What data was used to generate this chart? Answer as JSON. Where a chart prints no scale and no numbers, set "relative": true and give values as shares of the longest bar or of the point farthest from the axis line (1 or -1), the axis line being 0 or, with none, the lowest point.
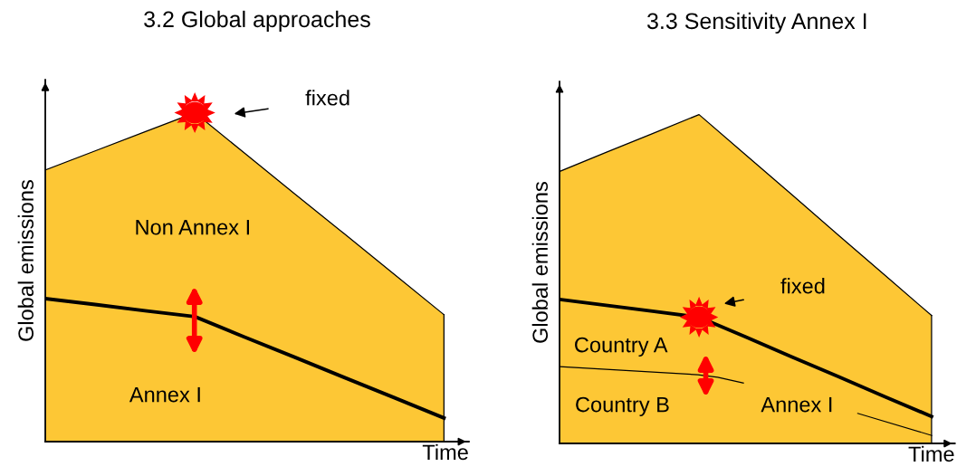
{
  "chart_data": [
    {
      "type": "area",
      "title": "3.2 Global approaches",
      "xlabel": "Time",
      "ylabel": "Global emissions",
      "relative": true,
      "stacked": true,
      "tick_labels": false,
      "categories": [
        null,
        null,
        null,
        null,
        null,
        null,
        null,
        null,
        null
      ],
      "series": [
        {
          "name": "Annex I",
          "color": "#fdc735",
          "values": [
            0.435,
            0.417,
            0.398,
            0.38,
            0.318,
            0.257,
            0.195,
            0.134,
            0.072
          ]
        },
        {
          "name": "Non Annex I",
          "color": "#fdc735",
          "values": [
            0.391,
            0.467,
            0.544,
            0.62,
            0.559,
            0.497,
            0.437,
            0.375,
            0.314
          ]
        }
      ],
      "annotations": [
        "fixed"
      ]
    },
    {
      "type": "area",
      "title": "3.3 Sensitivity Annex I",
      "xlabel": "Time",
      "ylabel": "Global emissions",
      "relative": true,
      "stacked": true,
      "tick_labels": false,
      "categories": [
        null,
        null,
        null,
        null,
        null,
        null,
        null,
        null,
        null
      ],
      "series": [
        {
          "name": "Annex I",
          "color": "#fdc735",
          "values": [
            0.438,
            0.42,
            0.402,
            0.384,
            0.324,
            0.263,
            0.203,
            0.142,
            0.082
          ]
        },
        {
          "color": "#fdc735",
          "values": [
            0.389,
            0.465,
            0.54,
            0.616,
            0.554,
            0.493,
            0.43,
            0.369,
            0.307
          ]
        }
      ],
      "annotations": [
        "fixed",
        "Country A",
        "Country B"
      ]
    }
  ]
}
